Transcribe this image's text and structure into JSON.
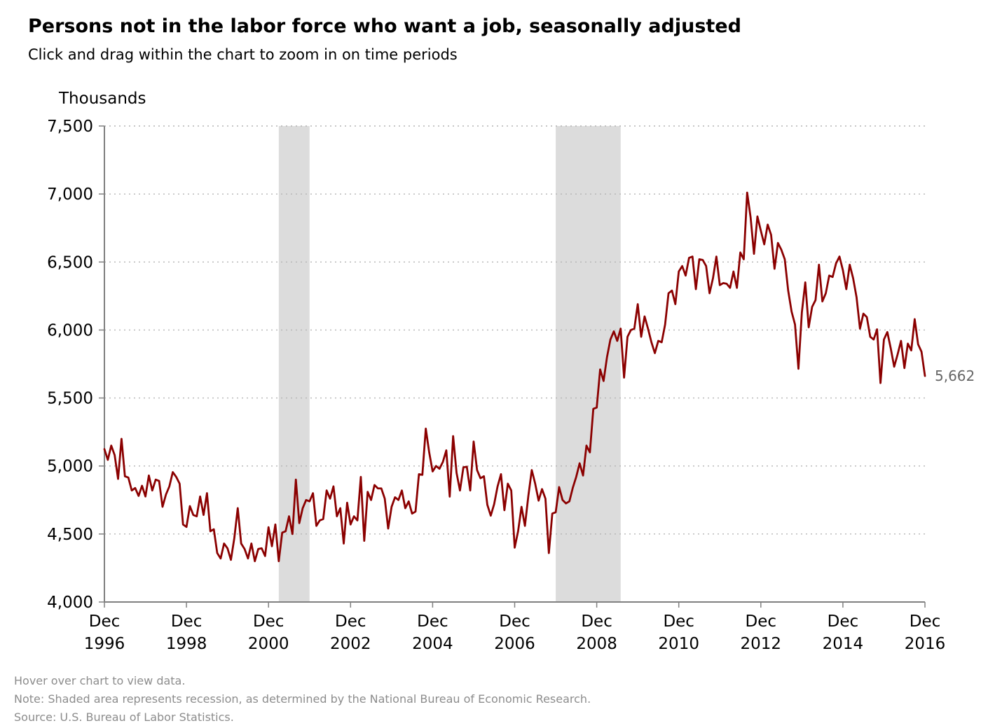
{
  "page": {
    "title": "Persons not in the labor force who want a job, seasonally adjusted",
    "subtitle": "Click and drag within the chart to zoom in on time periods",
    "footnotes": {
      "hover": "Hover over chart to view data.",
      "note": "Note: Shaded area represents recession, as determined by the National Bureau of Economic Research.",
      "source": "Source: U.S. Bureau of Labor Statistics."
    }
  },
  "colors": {
    "line": "#8b0000",
    "recession": "#dcdcdc",
    "grid": "#b4b4b4",
    "axis": "#808080",
    "end_label": "#666666"
  },
  "chart_data": {
    "type": "line",
    "title": "Persons not in the labor force who want a job, seasonally adjusted",
    "ylabel": "Thousands",
    "xlabel": "",
    "ylim": [
      4000,
      7500
    ],
    "y_ticks": [
      "4,000",
      "4,500",
      "5,000",
      "5,500",
      "6,000",
      "6,500",
      "7,000",
      "7,500"
    ],
    "x_range": [
      "1996-12",
      "2016-12"
    ],
    "x_ticks": [
      {
        "month": "Dec",
        "year": "1996"
      },
      {
        "month": "Dec",
        "year": "1998"
      },
      {
        "month": "Dec",
        "year": "2000"
      },
      {
        "month": "Dec",
        "year": "2002"
      },
      {
        "month": "Dec",
        "year": "2004"
      },
      {
        "month": "Dec",
        "year": "2006"
      },
      {
        "month": "Dec",
        "year": "2008"
      },
      {
        "month": "Dec",
        "year": "2010"
      },
      {
        "month": "Dec",
        "year": "2012"
      },
      {
        "month": "Dec",
        "year": "2014"
      },
      {
        "month": "Dec",
        "year": "2016"
      }
    ],
    "grid": "horizontal dotted",
    "recessions": [
      {
        "start": "2001-03",
        "end": "2001-11"
      },
      {
        "start": "2007-12",
        "end": "2009-06"
      }
    ],
    "end_label": "5,662",
    "series": [
      {
        "start": "1996-12",
        "values": [
          5124,
          5045,
          5150,
          5080,
          4905,
          5200,
          4924,
          4915,
          4820,
          4838,
          4780,
          4855,
          4776,
          4930,
          4820,
          4900,
          4890,
          4700,
          4790,
          4850,
          4955,
          4920,
          4870,
          4570,
          4552,
          4705,
          4640,
          4630,
          4776,
          4640,
          4800,
          4520,
          4535,
          4360,
          4320,
          4430,
          4395,
          4310,
          4470,
          4690,
          4430,
          4390,
          4320,
          4430,
          4300,
          4390,
          4395,
          4338,
          4550,
          4410,
          4570,
          4300,
          4510,
          4520,
          4630,
          4500,
          4900,
          4580,
          4690,
          4750,
          4740,
          4800,
          4560,
          4600,
          4610,
          4820,
          4760,
          4850,
          4630,
          4690,
          4430,
          4730,
          4570,
          4630,
          4600,
          4920,
          4450,
          4810,
          4750,
          4860,
          4835,
          4835,
          4760,
          4540,
          4700,
          4770,
          4750,
          4820,
          4690,
          4740,
          4650,
          4665,
          4940,
          4935,
          5275,
          5100,
          4960,
          5000,
          4980,
          5030,
          5115,
          4775,
          5220,
          4950,
          4820,
          4990,
          4995,
          4820,
          5180,
          4970,
          4910,
          4925,
          4715,
          4635,
          4720,
          4850,
          4940,
          4675,
          4870,
          4820,
          4400,
          4520,
          4700,
          4560,
          4780,
          4970,
          4870,
          4745,
          4830,
          4760,
          4360,
          4650,
          4660,
          4845,
          4750,
          4725,
          4740,
          4840,
          4920,
          5020,
          4930,
          5150,
          5100,
          5420,
          5430,
          5710,
          5625,
          5800,
          5930,
          5990,
          5920,
          6010,
          5650,
          5950,
          6000,
          6010,
          6190,
          5950,
          6100,
          6010,
          5910,
          5830,
          5920,
          5910,
          6040,
          6270,
          6290,
          6190,
          6430,
          6470,
          6400,
          6530,
          6540,
          6300,
          6520,
          6515,
          6470,
          6270,
          6380,
          6540,
          6330,
          6345,
          6340,
          6310,
          6430,
          6310,
          6570,
          6520,
          7010,
          6830,
          6560,
          6835,
          6730,
          6630,
          6775,
          6700,
          6450,
          6640,
          6590,
          6520,
          6290,
          6135,
          6040,
          5715,
          6130,
          6350,
          6020,
          6170,
          6220,
          6480,
          6210,
          6270,
          6400,
          6390,
          6490,
          6540,
          6440,
          6300,
          6480,
          6380,
          6240,
          6010,
          6120,
          6095,
          5950,
          5930,
          6005,
          5610,
          5930,
          5985,
          5865,
          5730,
          5820,
          5920,
          5720,
          5900,
          5850,
          6080,
          5895,
          5840,
          5662
        ]
      }
    ]
  }
}
